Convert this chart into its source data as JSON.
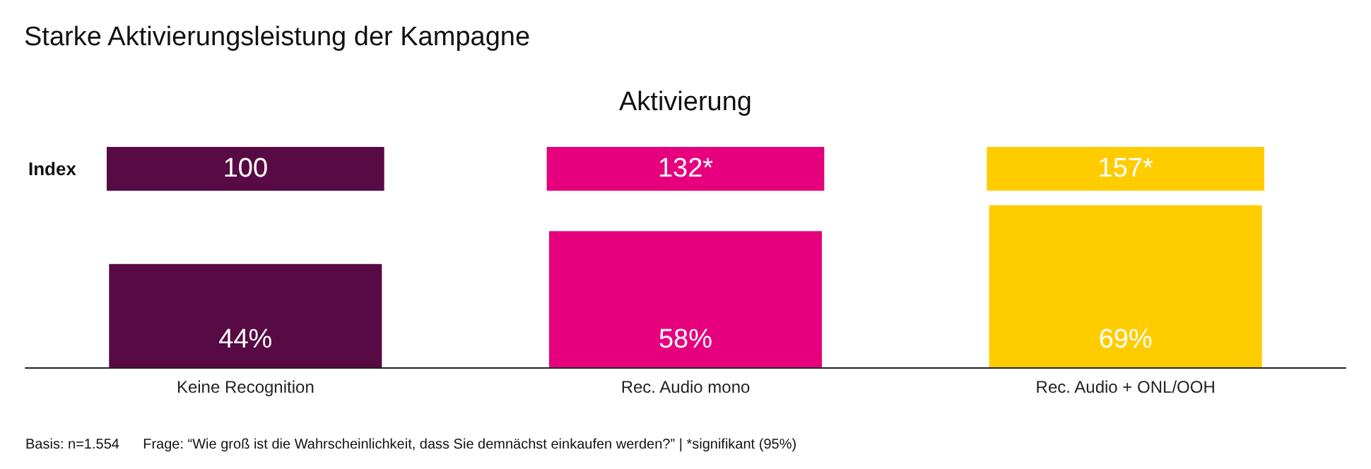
{
  "chart_data": {
    "type": "bar",
    "title": "Starke Aktivierungsleistung der Kampagne",
    "subtitle": "Aktivierung",
    "categories": [
      "Keine Recognition",
      "Rec. Audio mono",
      "Rec. Audio + ONL/OOH"
    ],
    "values": [
      44,
      58,
      69
    ],
    "colors": [
      "#570a44",
      "#e6007e",
      "#ffcc00"
    ],
    "value_labels": [
      "44%",
      "58%",
      "69%"
    ],
    "annotations": [
      "Index",
      "100",
      "132*",
      "157*",
      "Basis: n=1.554",
      "Frage: “Wie groß ist die Wahrscheinlichkeit, dass Sie demnächst einkaufen werden?” | *signifikant (95%)"
    ]
  }
}
